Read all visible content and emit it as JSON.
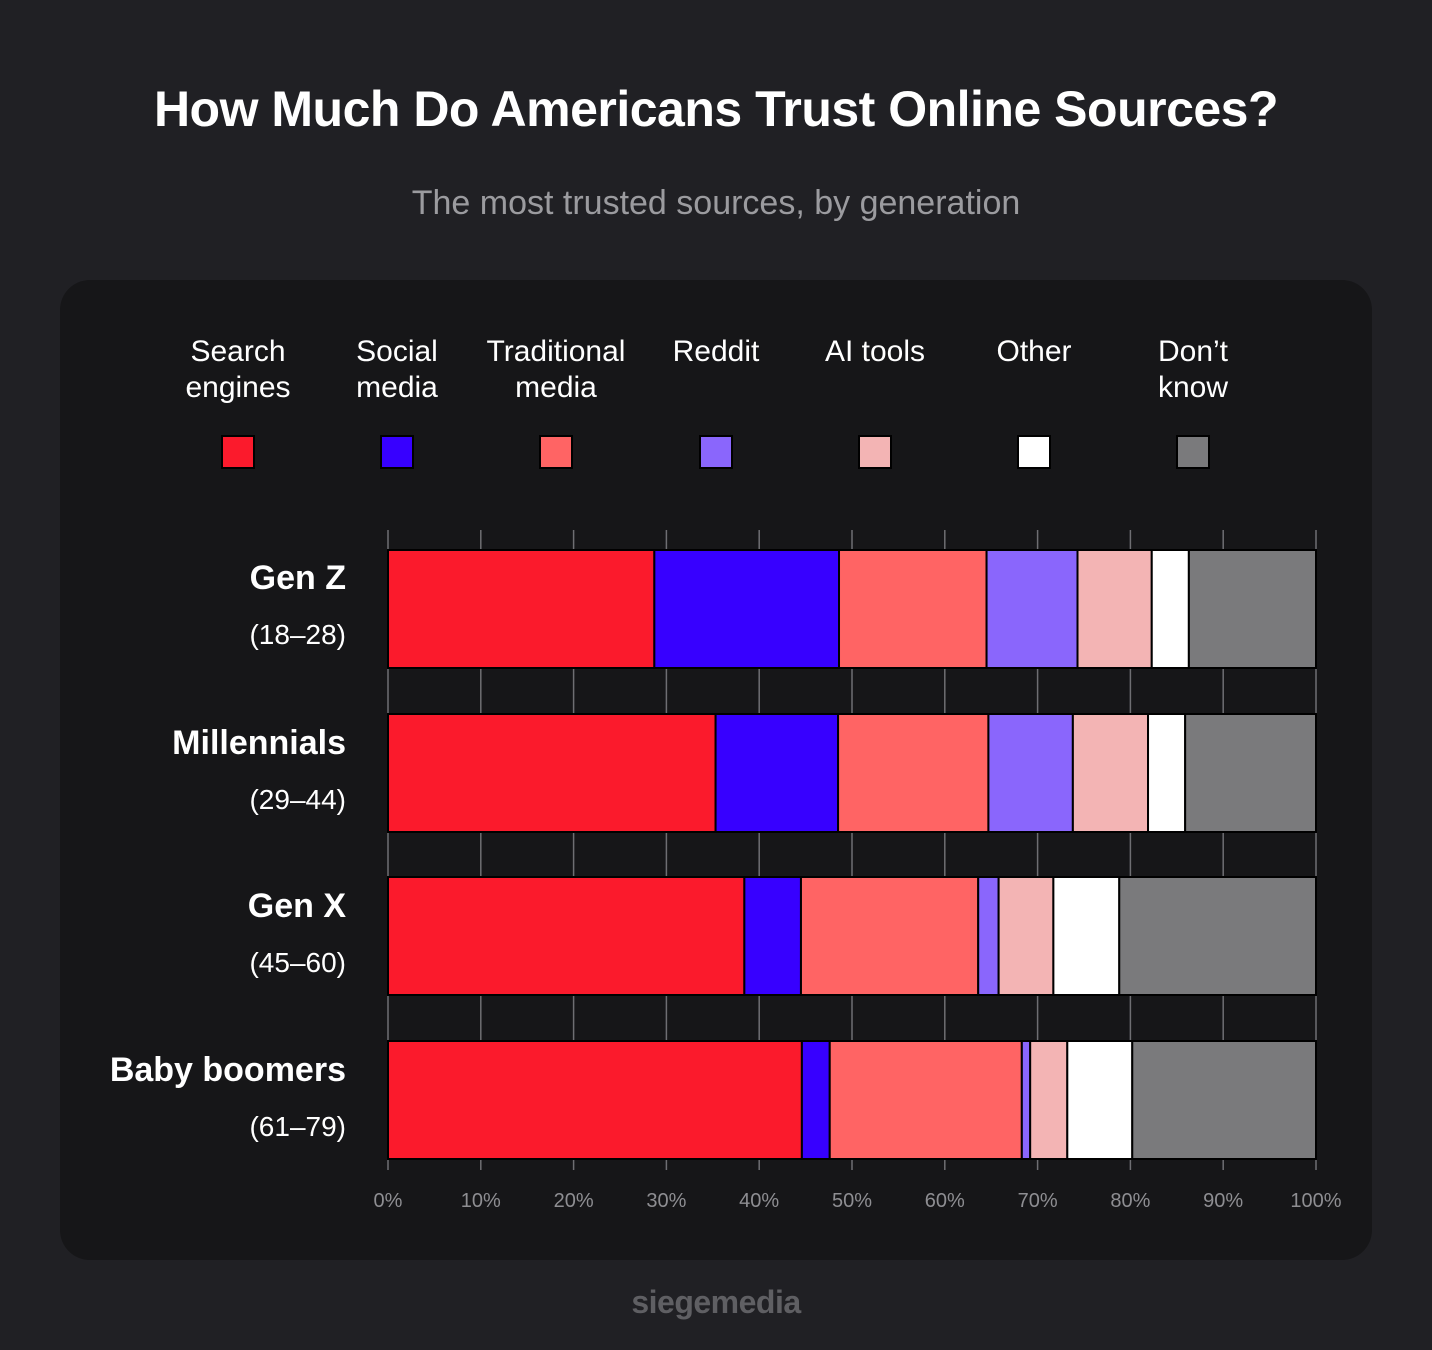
{
  "title": "How Much Do Americans Trust Online Sources?",
  "subtitle": "The most trusted sources, by generation",
  "brand": "siegemedia",
  "chart_data": {
    "type": "bar",
    "orientation": "horizontal",
    "stacked": true,
    "title": "How Much Do Americans Trust Online Sources?",
    "subtitle": "The most trusted sources, by generation",
    "categories": [
      "Gen Z",
      "Millennials",
      "Gen X",
      "Baby boomers"
    ],
    "category_ranges": [
      "(18–28)",
      "(29–44)",
      "(45–60)",
      "(61–79)"
    ],
    "xlim": [
      0,
      100
    ],
    "x_ticks": [
      "0%",
      "10%",
      "20%",
      "30%",
      "40%",
      "50%",
      "60%",
      "70%",
      "80%",
      "90%",
      "100%"
    ],
    "grid": true,
    "legend_position": "top",
    "series": [
      {
        "name": "Search engines",
        "legend_lines": [
          "Search",
          "engines"
        ],
        "color": "#fb1a2c",
        "values": [
          28.7,
          35.3,
          38.4,
          44.6
        ]
      },
      {
        "name": "Social media",
        "legend_lines": [
          "Social",
          "media"
        ],
        "color": "#3700ff",
        "values": [
          19.9,
          13.2,
          6.1,
          3.0
        ]
      },
      {
        "name": "Traditional media",
        "legend_lines": [
          "Traditional",
          "media"
        ],
        "color": "#ff6464",
        "values": [
          15.9,
          16.2,
          19.1,
          20.7
        ]
      },
      {
        "name": "Reddit",
        "legend_lines": [
          "Reddit"
        ],
        "color": "#8a66fc",
        "values": [
          9.8,
          9.1,
          2.2,
          0.9
        ]
      },
      {
        "name": "AI tools",
        "legend_lines": [
          "AI tools"
        ],
        "color": "#f3b4b4",
        "values": [
          8.0,
          8.1,
          5.9,
          4.0
        ]
      },
      {
        "name": "Other",
        "legend_lines": [
          "Other"
        ],
        "color": "#ffffff",
        "values": [
          4.0,
          4.0,
          7.1,
          7.0
        ]
      },
      {
        "name": "Don’t know",
        "legend_lines": [
          "Don’t",
          "know"
        ],
        "color": "#7a7a7c",
        "values": [
          13.7,
          14.1,
          21.2,
          19.8
        ]
      }
    ]
  }
}
